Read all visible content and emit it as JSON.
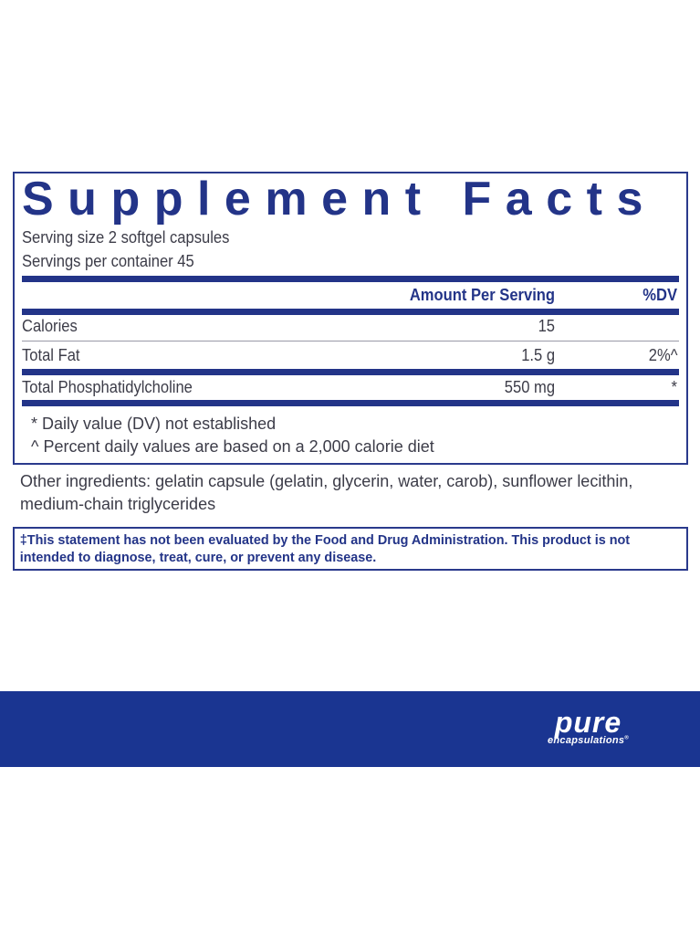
{
  "title": "Supplement Facts",
  "serving_size": "Serving size 2 softgel capsules",
  "servings_per_container": "Servings per container 45",
  "header": {
    "amount": "Amount Per Serving",
    "dv": "%DV"
  },
  "rows": [
    {
      "name": "Calories",
      "amount": "15",
      "dv": ""
    },
    {
      "name": "Total Fat",
      "amount": "1.5 g",
      "dv": "2%^"
    },
    {
      "name": "Total Phosphatidylcholine",
      "amount": "550 mg",
      "dv": "*"
    }
  ],
  "footnotes": [
    "* Daily value (DV) not established",
    "^ Percent daily values are based on a 2,000 calorie diet"
  ],
  "other_ingredients": "Other ingredients: gelatin capsule (gelatin, glycerin, water, carob), sunflower lecithin, medium-chain triglycerides",
  "disclaimer": "‡This statement has not been evaluated by the Food and Drug Administration. This product is not intended to diagnose, treat, cure, or prevent any disease.",
  "brand": {
    "name": "pure",
    "sub": "encapsulations",
    "mark": "®"
  },
  "colors": {
    "brand_blue": "#1a3591",
    "text": "#3c3c48"
  }
}
